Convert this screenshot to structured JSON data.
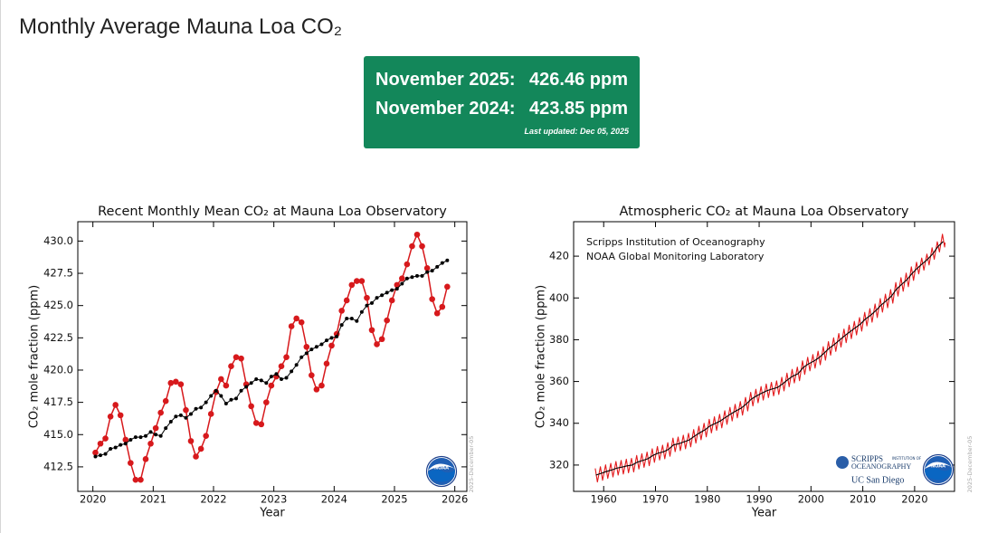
{
  "header": {
    "title": "Monthly Average Mauna Loa CO₂"
  },
  "banner": {
    "rows": [
      {
        "label": "November 2025:",
        "value": "426.46 ppm"
      },
      {
        "label": "November 2024:",
        "value": "423.85 ppm"
      }
    ],
    "updated": "Last updated: Dec 05, 2025"
  },
  "chart_data": [
    {
      "type": "line",
      "title": "Recent Monthly Mean CO₂ at Mauna Loa Observatory",
      "x_label": "Year",
      "y_label": "CO₂ mole fraction (ppm)",
      "watermark": "2025-December-05",
      "noaa_logo": "NOAA",
      "xlim": [
        2019.75,
        2026.2
      ],
      "xticks": [
        2020,
        2021,
        2022,
        2023,
        2024,
        2025,
        2026
      ],
      "ylim": [
        410.6,
        431.5
      ],
      "yticks": [
        412.5,
        {
          "value": 415,
          "label": "415.0"
        },
        417.5,
        {
          "value": 420,
          "label": "420.0"
        },
        422.5,
        {
          "value": 425,
          "label": "425.0"
        },
        427.5,
        {
          "value": 430,
          "label": "430.0"
        }
      ],
      "x": [
        2020.042,
        2020.125,
        2020.208,
        2020.292,
        2020.375,
        2020.458,
        2020.542,
        2020.625,
        2020.708,
        2020.792,
        2020.875,
        2020.958,
        2021.042,
        2021.125,
        2021.208,
        2021.292,
        2021.375,
        2021.458,
        2021.542,
        2021.625,
        2021.708,
        2021.792,
        2021.875,
        2021.958,
        2022.042,
        2022.125,
        2022.208,
        2022.292,
        2022.375,
        2022.458,
        2022.542,
        2022.625,
        2022.708,
        2022.792,
        2022.875,
        2022.958,
        2023.042,
        2023.125,
        2023.208,
        2023.292,
        2023.375,
        2023.458,
        2023.542,
        2023.625,
        2023.708,
        2023.792,
        2023.875,
        2023.958,
        2024.042,
        2024.125,
        2024.208,
        2024.292,
        2024.375,
        2024.458,
        2024.542,
        2024.625,
        2024.708,
        2024.792,
        2024.875,
        2024.958,
        2025.042,
        2025.125,
        2025.208,
        2025.292,
        2025.375,
        2025.458,
        2025.542,
        2025.625,
        2025.708,
        2025.792,
        2025.875
      ],
      "series": [
        {
          "color": "#d7191c",
          "markers": true,
          "values": [
            413.6,
            414.3,
            414.7,
            416.4,
            417.3,
            416.5,
            414.6,
            412.8,
            411.5,
            411.5,
            413.1,
            414.3,
            415.5,
            416.7,
            417.6,
            419.0,
            419.1,
            418.9,
            416.9,
            414.5,
            413.3,
            413.9,
            414.9,
            416.6,
            418.3,
            419.3,
            418.8,
            420.3,
            421.0,
            420.9,
            418.9,
            417.2,
            415.9,
            415.8,
            417.5,
            418.8,
            419.5,
            420.3,
            421.0,
            423.4,
            424.0,
            423.7,
            421.8,
            419.6,
            418.5,
            418.8,
            420.5,
            421.9,
            422.8,
            424.6,
            425.4,
            426.6,
            426.9,
            426.9,
            425.6,
            423.1,
            422.0,
            422.4,
            423.85,
            425.4,
            426.6,
            427.1,
            428.2,
            429.6,
            430.5,
            429.6,
            427.9,
            425.5,
            424.4,
            424.9,
            426.46
          ]
        },
        {
          "color": "#000000",
          "markers": true,
          "values": [
            413.3,
            413.4,
            413.5,
            413.9,
            414.0,
            414.2,
            414.3,
            414.6,
            414.8,
            414.8,
            414.9,
            415.2,
            415.0,
            414.9,
            415.5,
            416.0,
            416.4,
            416.5,
            416.3,
            416.6,
            417.0,
            417.1,
            417.5,
            418.0,
            418.4,
            418.0,
            417.4,
            417.7,
            417.8,
            418.4,
            418.7,
            419.0,
            419.3,
            419.2,
            419.0,
            419.5,
            419.7,
            419.3,
            419.4,
            419.9,
            420.4,
            421.0,
            421.3,
            421.6,
            421.8,
            422.0,
            422.3,
            422.5,
            422.6,
            423.5,
            424.0,
            424.0,
            423.8,
            424.5,
            425.0,
            425.2,
            425.6,
            425.8,
            426.0,
            426.2,
            426.3,
            426.7,
            427.1,
            427.2,
            427.3,
            427.3,
            427.6,
            427.7,
            428.0,
            428.3,
            428.5
          ]
        }
      ]
    },
    {
      "type": "line",
      "title": "Atmospheric CO₂ at Mauna Loa Observatory",
      "x_label": "Year",
      "y_label": "CO₂ mole fraction (ppm)",
      "watermark": "2025-December-05",
      "noaa_logo": "NOAA",
      "annotations": [
        "Scripps Institution of Oceanography",
        "NOAA Global Monitoring Laboratory"
      ],
      "scripps_logo": {
        "name": "SCRIPPS",
        "sub": "INSTITUTION OF",
        "line2": "OCEANOGRAPHY",
        "university": "UC San Diego"
      },
      "xlim": [
        1954.2,
        2027.7
      ],
      "xticks": [
        1960,
        1970,
        1980,
        1990,
        2000,
        2010,
        2020
      ],
      "ylim": [
        307.4,
        436.5
      ],
      "yticks": [
        320,
        340,
        360,
        380,
        400,
        420
      ],
      "series": [
        {
          "color": "#e31a1c",
          "markers": false,
          "x": [
            1958.37,
            1958.79,
            1959.37,
            1959.79,
            1960.37,
            1960.79,
            1961.37,
            1961.79,
            1962.37,
            1962.79,
            1963.37,
            1963.79,
            1964.37,
            1964.79,
            1965.37,
            1965.79,
            1966.37,
            1966.79,
            1967.37,
            1967.79,
            1968.37,
            1968.79,
            1969.37,
            1969.79,
            1970.37,
            1970.79,
            1971.37,
            1971.79,
            1972.37,
            1972.79,
            1973.37,
            1973.79,
            1974.37,
            1974.79,
            1975.37,
            1975.79,
            1976.37,
            1976.79,
            1977.37,
            1977.79,
            1978.37,
            1978.79,
            1979.37,
            1979.79,
            1980.37,
            1980.79,
            1981.37,
            1981.79,
            1982.37,
            1982.79,
            1983.37,
            1983.79,
            1984.37,
            1984.79,
            1985.37,
            1985.79,
            1986.37,
            1986.79,
            1987.37,
            1987.79,
            1988.37,
            1988.79,
            1989.37,
            1989.79,
            1990.37,
            1990.79,
            1991.37,
            1991.79,
            1992.37,
            1992.79,
            1993.37,
            1993.79,
            1994.37,
            1994.79,
            1995.37,
            1995.79,
            1996.37,
            1996.79,
            1997.37,
            1997.79,
            1998.37,
            1998.79,
            1999.37,
            1999.79,
            2000.37,
            2000.79,
            2001.37,
            2001.79,
            2002.37,
            2002.79,
            2003.37,
            2003.79,
            2004.37,
            2004.79,
            2005.37,
            2005.79,
            2006.37,
            2006.79,
            2007.37,
            2007.79,
            2008.37,
            2008.79,
            2009.37,
            2009.79,
            2010.37,
            2010.79,
            2011.37,
            2011.79,
            2012.37,
            2012.79,
            2013.37,
            2013.79,
            2014.37,
            2014.79,
            2015.37,
            2015.79,
            2016.37,
            2016.79,
            2017.37,
            2017.79,
            2018.37,
            2018.79,
            2019.37,
            2019.79,
            2020.37,
            2020.79,
            2021.37,
            2021.79,
            2022.37,
            2022.79,
            2023.37,
            2023.79,
            2024.37,
            2024.79,
            2025.37,
            2025.79,
            2025.87
          ],
          "values": [
            318.4,
            311.9,
            319.2,
            312.7,
            320.1,
            313.6,
            320.8,
            314.3,
            321.7,
            315.2,
            322.2,
            315.7,
            322.8,
            316.3,
            323.2,
            316.7,
            324.6,
            318.1,
            325.4,
            318.9,
            326.2,
            319.7,
            327.8,
            321.3,
            328.9,
            322.4,
            329.5,
            323.0,
            330.7,
            324.2,
            332.9,
            326.4,
            333.4,
            326.9,
            334.3,
            327.8,
            335.2,
            328.7,
            337.0,
            330.5,
            338.6,
            332.1,
            340.0,
            333.5,
            341.9,
            335.4,
            343.1,
            336.6,
            344.3,
            337.8,
            346.0,
            339.5,
            347.6,
            341.1,
            349.1,
            342.6,
            350.4,
            343.9,
            352.4,
            345.9,
            354.8,
            348.3,
            356.3,
            349.8,
            357.6,
            351.1,
            358.8,
            352.3,
            359.6,
            353.1,
            360.3,
            353.8,
            362.0,
            355.5,
            364.0,
            357.5,
            365.8,
            359.3,
            366.9,
            360.4,
            369.9,
            363.4,
            371.6,
            365.1,
            372.9,
            366.4,
            374.5,
            368.0,
            376.7,
            370.2,
            379.1,
            372.6,
            380.9,
            374.4,
            383.0,
            376.5,
            385.1,
            378.6,
            387.0,
            380.5,
            388.8,
            382.3,
            390.6,
            384.1,
            393.1,
            386.6,
            394.9,
            388.4,
            397.1,
            390.6,
            399.7,
            393.2,
            401.8,
            395.3,
            404.0,
            397.5,
            407.4,
            400.9,
            409.7,
            403.2,
            411.9,
            405.4,
            414.9,
            408.4,
            417.1,
            411.5,
            419.1,
            413.3,
            421.0,
            415.8,
            424.0,
            418.5,
            426.9,
            422.0,
            430.5,
            424.4,
            426.5
          ]
        },
        {
          "color": "#000000",
          "markers": false,
          "x": [
            1958.5,
            1959.5,
            1960.5,
            1961.5,
            1962.5,
            1963.5,
            1964.5,
            1965.5,
            1966.5,
            1967.5,
            1968.5,
            1969.5,
            1970.5,
            1971.5,
            1972.5,
            1973.5,
            1974.5,
            1975.5,
            1976.5,
            1977.5,
            1978.5,
            1979.5,
            1980.5,
            1981.5,
            1982.5,
            1983.5,
            1984.5,
            1985.5,
            1986.5,
            1987.5,
            1988.5,
            1989.5,
            1990.5,
            1991.5,
            1992.5,
            1993.5,
            1994.5,
            1995.5,
            1996.5,
            1997.5,
            1998.5,
            1999.5,
            2000.5,
            2001.5,
            2002.5,
            2003.5,
            2004.5,
            2005.5,
            2006.5,
            2007.5,
            2008.5,
            2009.5,
            2010.5,
            2011.5,
            2012.5,
            2013.5,
            2014.5,
            2015.5,
            2016.5,
            2017.5,
            2018.5,
            2019.5,
            2020.5,
            2021.5,
            2022.5,
            2023.5,
            2024.5,
            2025.5
          ],
          "values": [
            315.2,
            316.0,
            316.9,
            317.6,
            318.5,
            319.0,
            319.6,
            320.0,
            321.4,
            322.2,
            323.0,
            324.6,
            325.7,
            326.3,
            327.5,
            329.7,
            330.2,
            331.1,
            332.0,
            333.8,
            335.4,
            336.8,
            338.7,
            339.9,
            341.1,
            342.8,
            344.4,
            345.9,
            347.2,
            349.2,
            351.6,
            353.1,
            354.4,
            355.6,
            356.4,
            357.1,
            358.8,
            360.8,
            362.6,
            363.7,
            366.7,
            368.4,
            369.7,
            371.3,
            373.5,
            375.9,
            377.7,
            379.8,
            381.9,
            383.8,
            385.6,
            387.4,
            389.9,
            391.7,
            393.9,
            396.5,
            398.6,
            400.8,
            404.2,
            406.5,
            408.7,
            411.7,
            414.2,
            416.4,
            418.5,
            421.1,
            424.6,
            427.0
          ]
        }
      ]
    }
  ]
}
